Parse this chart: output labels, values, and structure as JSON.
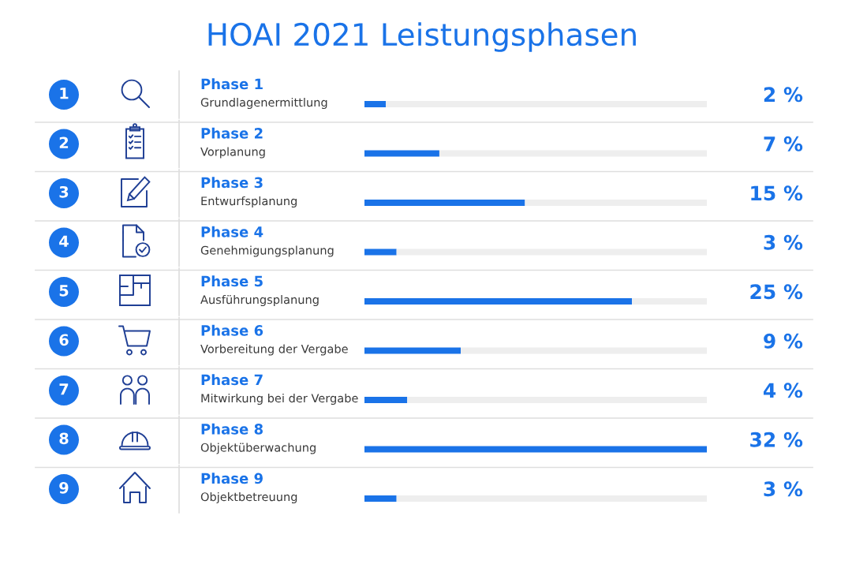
{
  "chart_data": {
    "type": "bar",
    "orientation": "horizontal",
    "stacked": true,
    "title": "HOAI 2021 Leistungsphasen",
    "categories": [
      "Phase 1",
      "Phase 2",
      "Phase 3",
      "Phase 4",
      "Phase 5",
      "Phase 6",
      "Phase 7",
      "Phase 8",
      "Phase 9"
    ],
    "series": [
      {
        "color": "#1a73e8",
        "values": [
          2,
          7,
          15,
          3,
          25,
          9,
          4,
          32,
          3
        ],
        "value_labels": [
          "2 %",
          "7 %",
          "15 %",
          "3 %",
          "25 %",
          "9 %",
          "4 %",
          "32 %",
          "3 %"
        ]
      },
      {
        "color": "#eeeeee",
        "values": [
          30,
          25,
          17,
          29,
          7,
          23,
          28,
          null,
          29
        ]
      }
    ],
    "tick_labels": "y",
    "annotations": [
      "1",
      "Grundlagenermittlung",
      "2",
      "Vorplanung",
      "3",
      "Entwurfsplanung",
      "4",
      "Genehmigungsplanung",
      "5",
      "Ausführungsplanung",
      "6",
      "Vorbereitung der Vergabe",
      "7",
      "Mitwirkung bei der Vergabe",
      "8",
      "Objektüberwachung",
      "9",
      "Objektbetreuung"
    ]
  }
}
